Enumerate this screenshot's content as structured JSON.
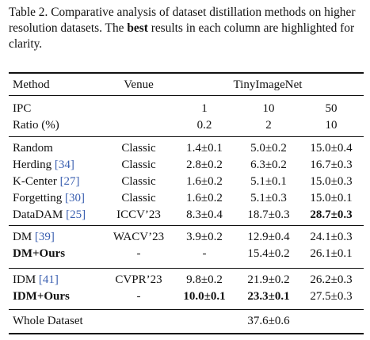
{
  "caption": {
    "pre": "Table 2.  Comparative analysis of dataset distillation methods on higher resolution datasets.  The ",
    "bold": "best",
    "post": " results in each column are highlighted for clarity."
  },
  "header": {
    "method": "Method",
    "venue": "Venue",
    "dataset": "TinyImageNet",
    "ipc_label": "IPC",
    "ratio_label": "Ratio (%)",
    "ipc": [
      "1",
      "10",
      "50"
    ],
    "ratio": [
      "0.2",
      "2",
      "10"
    ]
  },
  "groups": [
    {
      "rows": [
        {
          "name": "Random",
          "cite": "",
          "venue": "Classic",
          "v": [
            "1.4±0.1",
            "5.0±0.2",
            "15.0±0.4"
          ],
          "bold": [
            false,
            false,
            false
          ]
        },
        {
          "name": "Herding",
          "cite": "[34]",
          "venue": "Classic",
          "v": [
            "2.8±0.2",
            "6.3±0.2",
            "16.7±0.3"
          ],
          "bold": [
            false,
            false,
            false
          ]
        },
        {
          "name": "K-Center",
          "cite": "[27]",
          "venue": "Classic",
          "v": [
            "1.6±0.2",
            "5.1±0.1",
            "15.0±0.3"
          ],
          "bold": [
            false,
            false,
            false
          ]
        },
        {
          "name": "Forgetting",
          "cite": "[30]",
          "venue": "Classic",
          "v": [
            "1.6±0.2",
            "5.1±0.3",
            "15.0±0.1"
          ],
          "bold": [
            false,
            false,
            false
          ]
        },
        {
          "name": "DataDAM",
          "cite": "[25]",
          "venue": "ICCV’23",
          "v": [
            "8.3±0.4",
            "18.7±0.3",
            "28.7±0.3"
          ],
          "bold": [
            false,
            false,
            true
          ]
        }
      ]
    },
    {
      "rows": [
        {
          "name": "DM",
          "cite": "[39]",
          "venue": "WACV’23",
          "v": [
            "3.9±0.2",
            "12.9±0.4",
            "24.1±0.3"
          ],
          "bold": [
            false,
            false,
            false
          ]
        },
        {
          "name": "DM+Ours",
          "cite": "",
          "name_bold": true,
          "venue": "-",
          "v": [
            "-",
            "15.4±0.2",
            "26.1±0.1"
          ],
          "bold": [
            false,
            false,
            false
          ]
        }
      ]
    },
    {
      "rows": [
        {
          "name": "IDM",
          "cite": "[41]",
          "venue": "CVPR’23",
          "v": [
            "9.8±0.2",
            "21.9±0.2",
            "26.2±0.3"
          ],
          "bold": [
            false,
            false,
            false
          ]
        },
        {
          "name": "IDM+Ours",
          "cite": "",
          "name_bold": true,
          "venue": "-",
          "v": [
            "10.0±0.1",
            "23.3±0.1",
            "27.5±0.3"
          ],
          "bold": [
            true,
            true,
            false
          ]
        }
      ]
    }
  ],
  "whole": {
    "name": "Whole Dataset",
    "value": "37.6±0.6"
  }
}
